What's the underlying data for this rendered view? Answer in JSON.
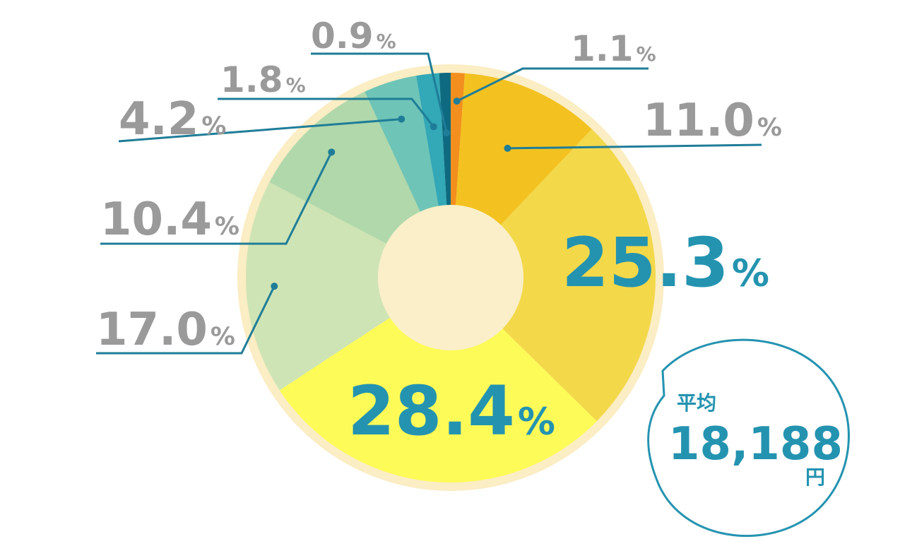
{
  "chart_data": {
    "type": "pie",
    "title": "",
    "categories": [
      "",
      "",
      "",
      "",
      "",
      "",
      "",
      "",
      ""
    ],
    "values": [
      1.1,
      11.0,
      25.3,
      28.4,
      17.0,
      10.4,
      4.2,
      1.8,
      0.9
    ],
    "labels": [
      {
        "number": "1.1",
        "unit": "%"
      },
      {
        "number": "11.0",
        "unit": "%"
      },
      {
        "number": "25.3",
        "unit": "%"
      },
      {
        "number": "28.4",
        "unit": "%"
      },
      {
        "number": "17.0",
        "unit": "%"
      },
      {
        "number": "10.4",
        "unit": "%"
      },
      {
        "number": "4.2",
        "unit": "%"
      },
      {
        "number": "1.8",
        "unit": "%"
      },
      {
        "number": "0.9",
        "unit": "%"
      }
    ],
    "colors": [
      "#f28f1e",
      "#f3c220",
      "#f3d84a",
      "#fdfb58",
      "#cfe4b5",
      "#b0d8ab",
      "#6ec4b6",
      "#33a8b7",
      "#0e6a80"
    ],
    "label_color_large": "#2493b0",
    "label_color_small": "#9a9a9a",
    "leader_color": "#1f7d98",
    "ring_color": "#fbedc4",
    "hole_color": "#faefc9",
    "legend": "none",
    "grid": false
  },
  "average_bubble": {
    "label": "平均",
    "value": "18,188",
    "unit": "円",
    "color": "#2493b0"
  }
}
